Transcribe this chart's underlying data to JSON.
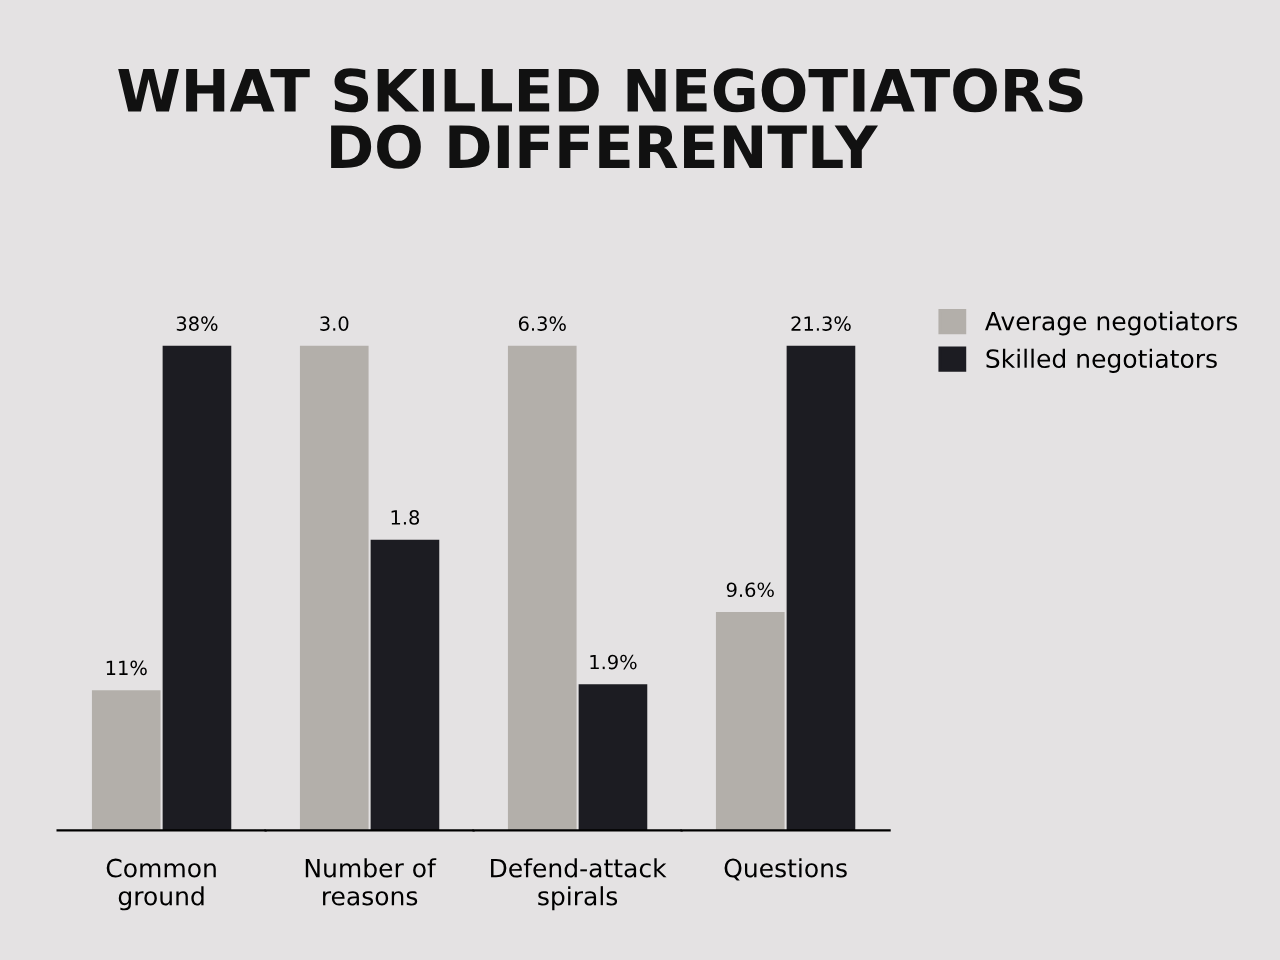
{
  "chart_data": [
    {
      "type": "bar",
      "title": "WHAT SKILLED NEGOTIATORS\nDO DIFFERENTLY",
      "categories": [
        "Common\nground"
      ],
      "legend": "top right",
      "series": [
        {
          "name": "Average negotiators",
          "color": "#b3afaa",
          "values": [
            11
          ],
          "value_labels": [
            "11%"
          ]
        },
        {
          "name": "Skilled negotiators",
          "color": "#1c1c22",
          "values": [
            38
          ],
          "value_labels": [
            "38%"
          ]
        }
      ]
    },
    {
      "type": "bar",
      "categories": [
        "Number of\nreasons"
      ],
      "series": [
        {
          "color": "#b3afaa",
          "values": [
            3.0
          ],
          "value_labels": [
            "3.0"
          ]
        },
        {
          "color": "#1c1c22",
          "values": [
            1.8
          ],
          "value_labels": [
            "1.8"
          ]
        }
      ]
    },
    {
      "type": "bar",
      "categories": [
        "Defend-attack\nspirals"
      ],
      "series": [
        {
          "color": "#b3afaa",
          "values": [
            6.3
          ],
          "value_labels": [
            "6.3%"
          ]
        },
        {
          "color": "#1c1c22",
          "values": [
            1.9
          ],
          "value_labels": [
            "1.9%"
          ]
        }
      ]
    },
    {
      "type": "bar",
      "categories": [
        "Questions"
      ],
      "series": [
        {
          "color": "#b3afaa",
          "values": [
            9.6
          ],
          "value_labels": [
            "9.6%"
          ]
        },
        {
          "color": "#1c1c22",
          "values": [
            21.3
          ],
          "value_labels": [
            "21.3%"
          ]
        }
      ]
    }
  ]
}
